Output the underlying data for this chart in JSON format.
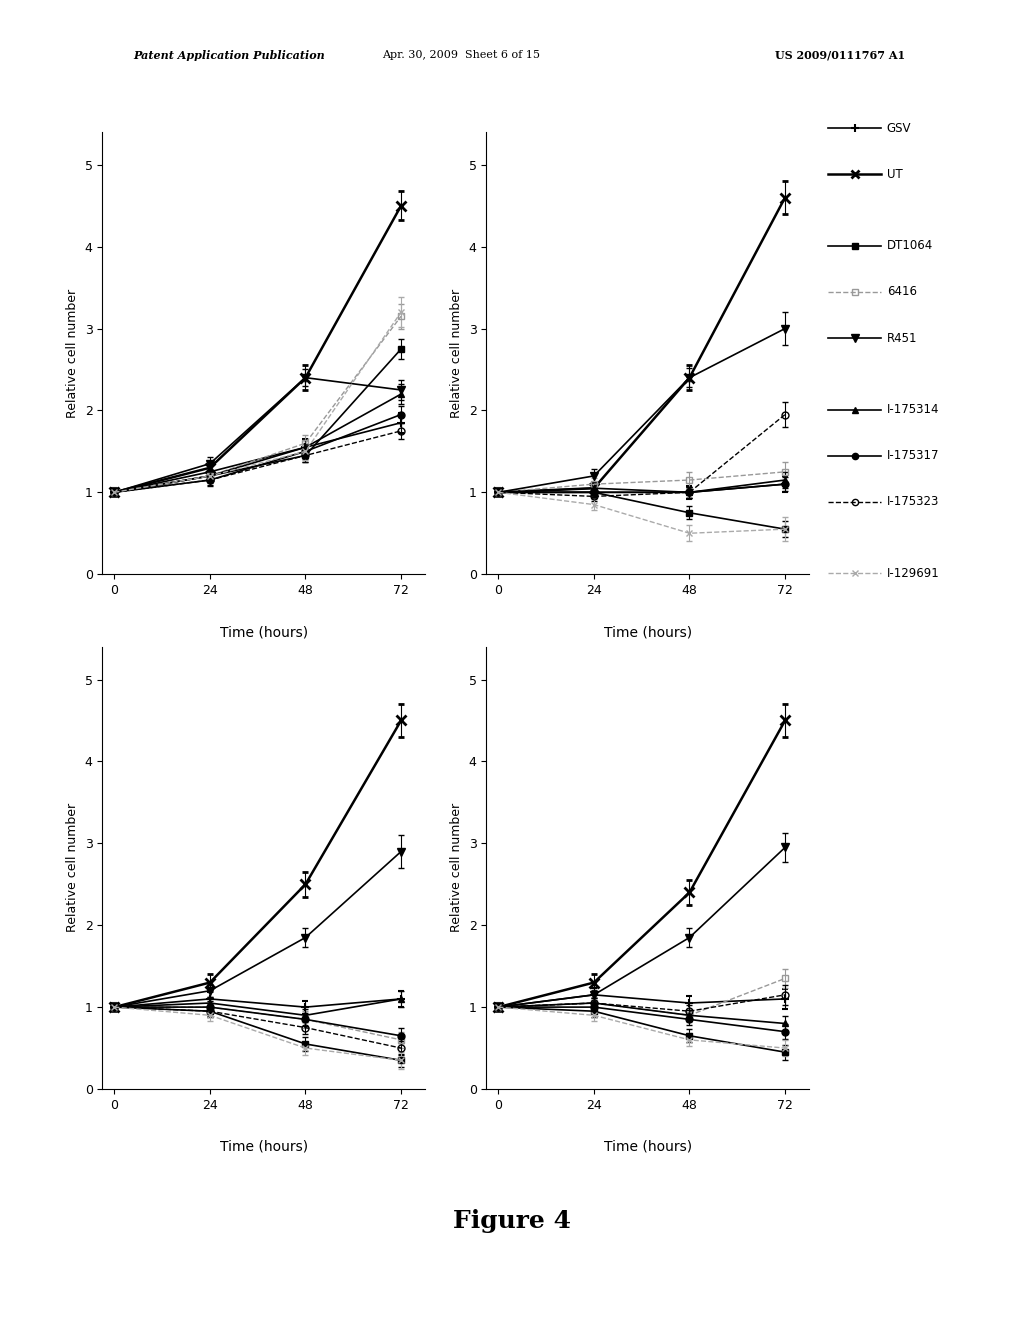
{
  "time": [
    0,
    24,
    48,
    72
  ],
  "header_left": "Patent Application Publication",
  "header_mid": "Apr. 30, 2009  Sheet 6 of 15",
  "header_right": "US 2009/0111767 A1",
  "figure_label": "Figure 4",
  "ylabel": "Relative cell number",
  "xlabel": "Time (hours)",
  "xticks": [
    0,
    24,
    48,
    72
  ],
  "yticks": [
    0,
    1,
    2,
    3,
    4,
    5
  ],
  "ylim": [
    0,
    5.4
  ],
  "series": {
    "GSV": {
      "marker": "+",
      "color": "#000000",
      "linestyle": "-",
      "linewidth": 1.2,
      "markersize": 6,
      "fillstyle": "full",
      "markeredgewidth": 1.5
    },
    "UT": {
      "marker": "x",
      "color": "#000000",
      "linestyle": "-",
      "linewidth": 1.8,
      "markersize": 7,
      "fillstyle": "full",
      "markeredgewidth": 2.0
    },
    "DT1064": {
      "marker": "s",
      "color": "#000000",
      "linestyle": "-",
      "linewidth": 1.2,
      "markersize": 5,
      "fillstyle": "full",
      "markeredgewidth": 1.0
    },
    "6416": {
      "marker": "s",
      "color": "#999999",
      "linestyle": "--",
      "linewidth": 1.0,
      "markersize": 5,
      "fillstyle": "none",
      "markeredgewidth": 1.0
    },
    "R451": {
      "marker": "v",
      "color": "#000000",
      "linestyle": "-",
      "linewidth": 1.2,
      "markersize": 6,
      "fillstyle": "full",
      "markeredgewidth": 1.0
    },
    "I-175314": {
      "marker": "^",
      "color": "#000000",
      "linestyle": "-",
      "linewidth": 1.2,
      "markersize": 5,
      "fillstyle": "full",
      "markeredgewidth": 1.0
    },
    "I-175317": {
      "marker": "o",
      "color": "#000000",
      "linestyle": "-",
      "linewidth": 1.2,
      "markersize": 5,
      "fillstyle": "full",
      "markeredgewidth": 1.0
    },
    "I-175323": {
      "marker": "o",
      "color": "#000000",
      "linestyle": "--",
      "linewidth": 1.0,
      "markersize": 5,
      "fillstyle": "none",
      "markeredgewidth": 1.0
    },
    "I-129691": {
      "marker": "x",
      "color": "#aaaaaa",
      "linestyle": "--",
      "linewidth": 1.0,
      "markersize": 5,
      "fillstyle": "full",
      "markeredgewidth": 1.0
    }
  },
  "subplot_data": [
    {
      "series_data": {
        "GSV": {
          "y": [
            1.0,
            1.25,
            1.55,
            1.85
          ],
          "yerr": [
            0.05,
            0.08,
            0.1,
            0.12
          ]
        },
        "UT": {
          "y": [
            1.0,
            1.3,
            2.4,
            4.5
          ],
          "yerr": [
            0.05,
            0.08,
            0.15,
            0.18
          ]
        },
        "DT1064": {
          "y": [
            1.0,
            1.2,
            1.45,
            2.75
          ],
          "yerr": [
            0.05,
            0.07,
            0.08,
            0.12
          ]
        },
        "6416": {
          "y": [
            1.0,
            1.2,
            1.6,
            3.15
          ],
          "yerr": [
            0.05,
            0.08,
            0.1,
            0.15
          ]
        },
        "R451": {
          "y": [
            1.0,
            1.35,
            2.4,
            2.25
          ],
          "yerr": [
            0.05,
            0.08,
            0.1,
            0.12
          ]
        },
        "I-175314": {
          "y": [
            1.0,
            1.2,
            1.55,
            2.2
          ],
          "yerr": [
            0.05,
            0.07,
            0.09,
            0.12
          ]
        },
        "I-175317": {
          "y": [
            1.0,
            1.15,
            1.5,
            1.95
          ],
          "yerr": [
            0.05,
            0.07,
            0.09,
            0.1
          ]
        },
        "I-175323": {
          "y": [
            1.0,
            1.15,
            1.45,
            1.75
          ],
          "yerr": [
            0.05,
            0.06,
            0.08,
            0.1
          ]
        },
        "I-129691": {
          "y": [
            1.0,
            1.2,
            1.5,
            3.2
          ],
          "yerr": [
            0.05,
            0.08,
            0.1,
            0.18
          ]
        }
      }
    },
    {
      "series_data": {
        "GSV": {
          "y": [
            1.0,
            1.0,
            1.0,
            1.1
          ],
          "yerr": [
            0.05,
            0.07,
            0.08,
            0.1
          ]
        },
        "UT": {
          "y": [
            1.0,
            1.05,
            2.4,
            4.6
          ],
          "yerr": [
            0.05,
            0.08,
            0.15,
            0.2
          ]
        },
        "DT1064": {
          "y": [
            1.0,
            1.0,
            0.75,
            0.55
          ],
          "yerr": [
            0.05,
            0.07,
            0.08,
            0.1
          ]
        },
        "6416": {
          "y": [
            1.0,
            1.1,
            1.15,
            1.25
          ],
          "yerr": [
            0.05,
            0.08,
            0.1,
            0.12
          ]
        },
        "R451": {
          "y": [
            1.0,
            1.2,
            2.4,
            3.0
          ],
          "yerr": [
            0.05,
            0.08,
            0.12,
            0.2
          ]
        },
        "I-175314": {
          "y": [
            1.0,
            1.05,
            1.0,
            1.15
          ],
          "yerr": [
            0.05,
            0.06,
            0.07,
            0.1
          ]
        },
        "I-175317": {
          "y": [
            1.0,
            1.0,
            1.0,
            1.1
          ],
          "yerr": [
            0.05,
            0.06,
            0.07,
            0.09
          ]
        },
        "I-175323": {
          "y": [
            1.0,
            0.95,
            1.0,
            1.95
          ],
          "yerr": [
            0.05,
            0.06,
            0.07,
            0.15
          ]
        },
        "I-129691": {
          "y": [
            1.0,
            0.85,
            0.5,
            0.55
          ],
          "yerr": [
            0.05,
            0.07,
            0.1,
            0.15
          ]
        }
      }
    },
    {
      "series_data": {
        "GSV": {
          "y": [
            1.0,
            1.1,
            1.0,
            1.1
          ],
          "yerr": [
            0.05,
            0.08,
            0.08,
            0.1
          ]
        },
        "UT": {
          "y": [
            1.0,
            1.3,
            2.5,
            4.5
          ],
          "yerr": [
            0.05,
            0.1,
            0.15,
            0.2
          ]
        },
        "DT1064": {
          "y": [
            1.0,
            0.95,
            0.55,
            0.35
          ],
          "yerr": [
            0.05,
            0.07,
            0.08,
            0.08
          ]
        },
        "6416": {
          "y": [
            1.0,
            1.0,
            0.85,
            0.6
          ],
          "yerr": [
            0.05,
            0.08,
            0.1,
            0.1
          ]
        },
        "R451": {
          "y": [
            1.0,
            1.2,
            1.85,
            2.9
          ],
          "yerr": [
            0.05,
            0.08,
            0.12,
            0.2
          ]
        },
        "I-175314": {
          "y": [
            1.0,
            1.05,
            0.9,
            1.1
          ],
          "yerr": [
            0.05,
            0.07,
            0.08,
            0.1
          ]
        },
        "I-175317": {
          "y": [
            1.0,
            1.0,
            0.85,
            0.65
          ],
          "yerr": [
            0.05,
            0.07,
            0.08,
            0.09
          ]
        },
        "I-175323": {
          "y": [
            1.0,
            0.95,
            0.75,
            0.5
          ],
          "yerr": [
            0.05,
            0.06,
            0.08,
            0.09
          ]
        },
        "I-129691": {
          "y": [
            1.0,
            0.9,
            0.5,
            0.35
          ],
          "yerr": [
            0.05,
            0.07,
            0.08,
            0.1
          ]
        }
      }
    },
    {
      "series_data": {
        "GSV": {
          "y": [
            1.0,
            1.15,
            1.05,
            1.1
          ],
          "yerr": [
            0.05,
            0.08,
            0.09,
            0.12
          ]
        },
        "UT": {
          "y": [
            1.0,
            1.3,
            2.4,
            4.5
          ],
          "yerr": [
            0.05,
            0.1,
            0.15,
            0.2
          ]
        },
        "DT1064": {
          "y": [
            1.0,
            0.95,
            0.65,
            0.45
          ],
          "yerr": [
            0.05,
            0.07,
            0.08,
            0.09
          ]
        },
        "6416": {
          "y": [
            1.0,
            1.05,
            0.9,
            1.35
          ],
          "yerr": [
            0.05,
            0.07,
            0.08,
            0.12
          ]
        },
        "R451": {
          "y": [
            1.0,
            1.15,
            1.85,
            2.95
          ],
          "yerr": [
            0.05,
            0.08,
            0.12,
            0.18
          ]
        },
        "I-175314": {
          "y": [
            1.0,
            1.05,
            0.9,
            0.8
          ],
          "yerr": [
            0.05,
            0.06,
            0.07,
            0.09
          ]
        },
        "I-175317": {
          "y": [
            1.0,
            1.0,
            0.85,
            0.7
          ],
          "yerr": [
            0.05,
            0.06,
            0.07,
            0.09
          ]
        },
        "I-175323": {
          "y": [
            1.0,
            1.05,
            0.95,
            1.15
          ],
          "yerr": [
            0.05,
            0.06,
            0.08,
            0.12
          ]
        },
        "I-129691": {
          "y": [
            1.0,
            0.9,
            0.6,
            0.5
          ],
          "yerr": [
            0.05,
            0.07,
            0.08,
            0.1
          ]
        }
      }
    }
  ],
  "legend_order": [
    "GSV",
    "UT",
    "DT1064",
    "6416",
    "R451",
    "I-175314",
    "I-175317",
    "I-175323",
    "I-129691"
  ],
  "legend_groups": [
    [
      0,
      1
    ],
    [
      2,
      3,
      4
    ],
    [
      5,
      6,
      7
    ],
    [
      8
    ]
  ]
}
